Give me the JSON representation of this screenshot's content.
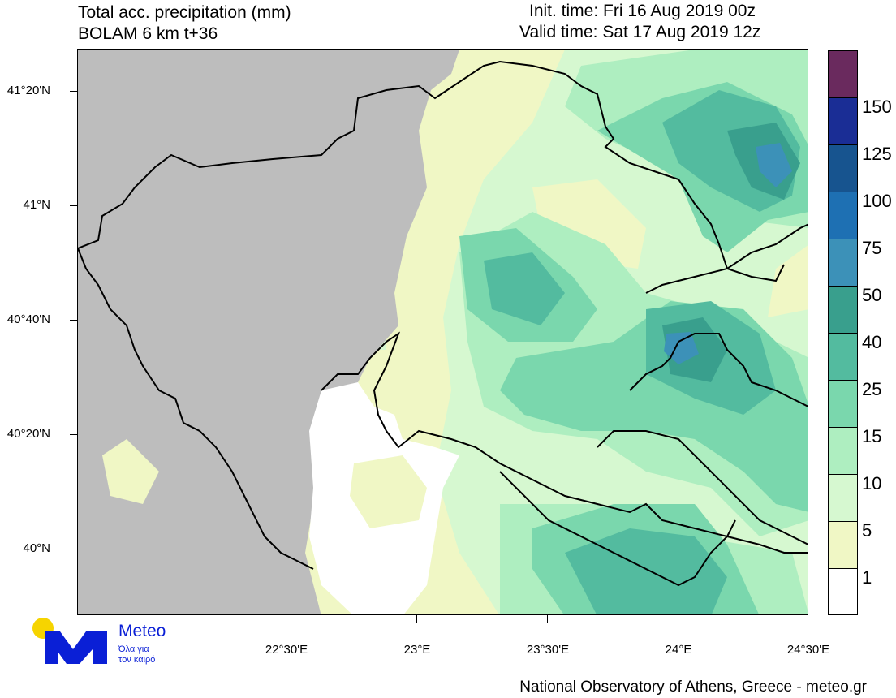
{
  "header": {
    "title_line1": "Total acc. precipitation (mm)",
    "title_line2": "BOLAM 6 km t+36",
    "init_time": "Init. time: Fri 16 Aug 2019 00z",
    "valid_time": "Valid time: Sat 17 Aug 2019 12z"
  },
  "axes": {
    "lat_labels": [
      "41°20'N",
      "41°N",
      "40°40'N",
      "40°20'N",
      "40°N"
    ],
    "lon_labels": [
      "22°30'E",
      "23°E",
      "23°30'E",
      "24°E",
      "24°30'E"
    ]
  },
  "legend": {
    "unit": "mm",
    "levels": [
      "1",
      "5",
      "10",
      "15",
      "25",
      "40",
      "50",
      "75",
      "100",
      "125",
      "150"
    ],
    "colors": [
      "#ffffff",
      "#f0f7c5",
      "#d6f8d0",
      "#aeeec0",
      "#7ad7ad",
      "#53bb9f",
      "#399f8d",
      "#3c91b8",
      "#1e70b3",
      "#17548f",
      "#1a2d95",
      "#6a2a5e"
    ]
  },
  "logo": {
    "brand": "Meteo",
    "tagline_line1": "Όλα για",
    "tagline_line2": "τον καιρό",
    "colors": {
      "primary": "#0a1fd6",
      "sun": "#f6d400"
    }
  },
  "footer": {
    "credit": "National Observatory of Athens, Greece - meteo.gr"
  },
  "map": {
    "masked_area_color": "#bdbdbd",
    "coastline_color": "#000000"
  }
}
